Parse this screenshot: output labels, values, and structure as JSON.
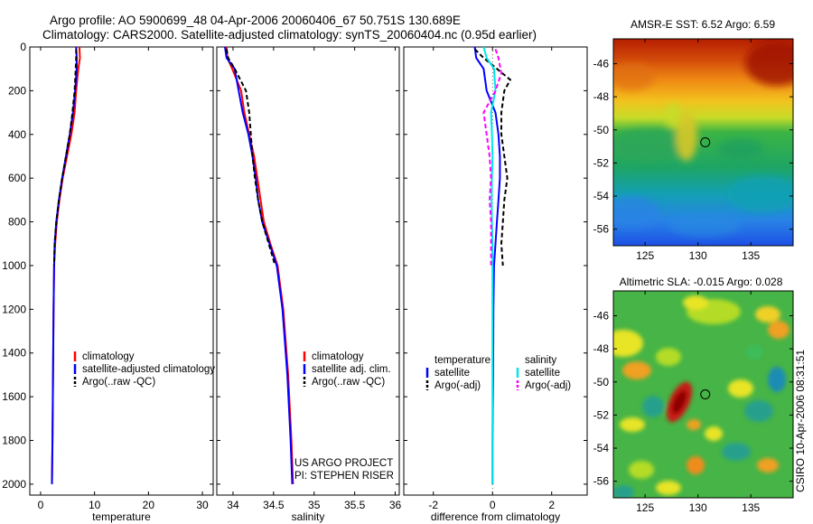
{
  "title_line1": "Argo profile: AO 5900699_48 04-Apr-2006 20060406_67 50.751S 130.689E",
  "title_line2": "Climatology: CARS2000. Satellite-adjusted climatology: synTS_20060404.nc (0.95d earlier)",
  "side_label": "CSIRO 10-Apr-2006 08:31:51",
  "project_line1": "US ARGO PROJECT",
  "project_line2": "PI: STEPHEN RISER",
  "colors": {
    "climatology": "#ff0000",
    "satellite": "#0000ff",
    "argo": "#000000",
    "salinity_satellite": "#00e5ee",
    "salinity_argo": "#ff00ff"
  },
  "chart_data": [
    {
      "type": "line",
      "name": "temperature",
      "xlabel": "temperature",
      "ylabel": "",
      "xlim": [
        -2,
        32
      ],
      "ylim": [
        2050,
        0
      ],
      "xticks": [
        0,
        10,
        20,
        30
      ],
      "yticks": [
        0,
        200,
        400,
        600,
        800,
        1000,
        1200,
        1400,
        1600,
        1800,
        2000
      ],
      "legend": [
        "climatology",
        "satellite-adjusted climatology",
        "Argo(..raw -QC)"
      ],
      "series": [
        {
          "name": "climatology",
          "color": "#ff0000",
          "dashed": false,
          "x": [
            7.2,
            7.3,
            7.0,
            6.6,
            6.3,
            5.7,
            4.9,
            4.1,
            3.5,
            3.0,
            2.7,
            2.5,
            2.4,
            2.3,
            2.2,
            2.1
          ],
          "y": [
            0,
            50,
            100,
            200,
            300,
            400,
            500,
            600,
            700,
            800,
            900,
            1000,
            1200,
            1500,
            1800,
            2000
          ]
        },
        {
          "name": "satellite-adjusted climatology",
          "color": "#0000ff",
          "dashed": false,
          "x": [
            6.6,
            6.7,
            6.7,
            6.4,
            6.0,
            5.4,
            4.7,
            4.0,
            3.4,
            2.9,
            2.6,
            2.5,
            2.4,
            2.3,
            2.2,
            2.1
          ],
          "y": [
            0,
            50,
            100,
            200,
            300,
            400,
            500,
            600,
            700,
            800,
            900,
            1000,
            1200,
            1500,
            1800,
            2000
          ]
        },
        {
          "name": "Argo(..raw -QC)",
          "color": "#000000",
          "dashed": true,
          "x": [
            6.6,
            6.6,
            6.5,
            6.3,
            5.9,
            5.4,
            4.7,
            4.0,
            3.4,
            2.9,
            2.6,
            2.5
          ],
          "y": [
            10,
            50,
            100,
            200,
            300,
            400,
            500,
            600,
            700,
            800,
            900,
            1000
          ]
        }
      ]
    },
    {
      "type": "line",
      "name": "salinity",
      "xlabel": "salinity",
      "ylabel": "",
      "xlim": [
        33.8,
        36.05
      ],
      "ylim": [
        2050,
        0
      ],
      "xticks": [
        34,
        34.5,
        35,
        35.5,
        36
      ],
      "yticks": [
        0,
        200,
        400,
        600,
        800,
        1000,
        1200,
        1400,
        1600,
        1800,
        2000
      ],
      "legend": [
        "climatology",
        "satellite adj. clim.",
        "Argo(..raw -QC)"
      ],
      "series": [
        {
          "name": "climatology",
          "color": "#ff0000",
          "dashed": false,
          "x": [
            33.92,
            33.93,
            33.99,
            34.1,
            34.14,
            34.2,
            34.26,
            34.3,
            34.34,
            34.38,
            34.46,
            34.55,
            34.62,
            34.68,
            34.72,
            34.74
          ],
          "y": [
            0,
            50,
            100,
            200,
            300,
            400,
            500,
            600,
            700,
            800,
            900,
            1000,
            1200,
            1500,
            1800,
            2000
          ]
        },
        {
          "name": "satellite adj. clim.",
          "color": "#0000ff",
          "dashed": false,
          "x": [
            33.9,
            33.92,
            34.02,
            34.07,
            34.12,
            34.19,
            34.24,
            34.28,
            34.31,
            34.36,
            34.45,
            34.54,
            34.61,
            34.67,
            34.71,
            34.73
          ],
          "y": [
            0,
            50,
            100,
            200,
            300,
            400,
            500,
            600,
            700,
            800,
            900,
            1000,
            1200,
            1500,
            1800,
            2000
          ]
        },
        {
          "name": "Argo(..raw -QC)",
          "color": "#000000",
          "dashed": true,
          "x": [
            33.92,
            33.94,
            34.02,
            34.16,
            34.2,
            34.22,
            34.24,
            34.27,
            34.31,
            34.36,
            34.44,
            34.52
          ],
          "y": [
            10,
            50,
            100,
            200,
            300,
            400,
            500,
            600,
            700,
            800,
            900,
            1000
          ]
        }
      ]
    },
    {
      "type": "line",
      "name": "difference",
      "xlabel": "difference from climatology",
      "ylabel": "",
      "xlim": [
        -3,
        3.2
      ],
      "ylim": [
        2050,
        0
      ],
      "xticks": [
        -2,
        0,
        2
      ],
      "yticks": [
        0,
        200,
        400,
        600,
        800,
        1000,
        1200,
        1400,
        1600,
        1800,
        2000
      ],
      "legend_headers": [
        "temperature",
        "salinity"
      ],
      "legend": [
        "satellite",
        "Argo(-adj)",
        "satellite",
        "Argo(-adj)"
      ],
      "series": [
        {
          "name": "temperature satellite",
          "color": "#0000ff",
          "dashed": false,
          "x": [
            -0.6,
            -0.55,
            -0.3,
            -0.2,
            0.1,
            0.2,
            0.25,
            0.25,
            0.2,
            0.15,
            0.1,
            0.05,
            0.03,
            0.02,
            0.0,
            0.0
          ],
          "y": [
            0,
            50,
            100,
            200,
            300,
            400,
            500,
            600,
            700,
            800,
            900,
            1000,
            1200,
            1500,
            1800,
            2000
          ]
        },
        {
          "name": "temperature Argo(-adj)",
          "color": "#000000",
          "dashed": true,
          "x": [
            -0.6,
            -0.3,
            0.6,
            0.4,
            0.3,
            0.3,
            0.4,
            0.5,
            0.4,
            0.35,
            0.3,
            0.35
          ],
          "y": [
            10,
            50,
            150,
            200,
            300,
            400,
            500,
            600,
            700,
            800,
            900,
            1000
          ]
        },
        {
          "name": "salinity satellite",
          "color": "#00e5ee",
          "dashed": false,
          "x": [
            -0.3,
            -0.2,
            0.05,
            0.1,
            -0.05,
            -0.02,
            0.0,
            -0.02,
            -0.03,
            -0.02,
            0.0,
            0.0,
            0.0,
            0.0,
            0.0,
            0.0
          ],
          "y": [
            0,
            50,
            100,
            200,
            300,
            400,
            500,
            600,
            700,
            800,
            900,
            1000,
            1200,
            1500,
            1800,
            2000
          ]
        },
        {
          "name": "salinity Argo(-adj)",
          "color": "#ff00ff",
          "dashed": true,
          "x": [
            0.1,
            0.2,
            0.3,
            0.1,
            -0.3,
            -0.2,
            -0.1,
            -0.05,
            -0.1,
            -0.05,
            -0.05,
            -0.05
          ],
          "y": [
            10,
            50,
            120,
            200,
            300,
            400,
            500,
            600,
            700,
            800,
            900,
            1000
          ]
        }
      ]
    },
    {
      "type": "heatmap",
      "name": "sst_map",
      "title": "AMSR-E SST: 6.52 Argo: 6.59",
      "xlim": [
        122,
        139
      ],
      "ylim": [
        -57,
        -44.5
      ],
      "xticks": [
        125,
        130,
        135
      ],
      "yticks": [
        -46,
        -48,
        -50,
        -52,
        -54,
        -56
      ],
      "marker": {
        "lon": 130.689,
        "lat": -50.751
      },
      "description_values": {
        "amsr_e_sst": 6.52,
        "argo": 6.59
      }
    },
    {
      "type": "heatmap",
      "name": "sla_map",
      "title": "Altimetric SLA: -0.015 Argo: 0.028",
      "xlim": [
        122,
        139
      ],
      "ylim": [
        -57,
        -44.5
      ],
      "xticks": [
        125,
        130,
        135
      ],
      "yticks": [
        -46,
        -48,
        -50,
        -52,
        -54,
        -56
      ],
      "marker": {
        "lon": 130.689,
        "lat": -50.751
      },
      "description_values": {
        "altimetric_sla": -0.015,
        "argo": 0.028
      }
    }
  ]
}
